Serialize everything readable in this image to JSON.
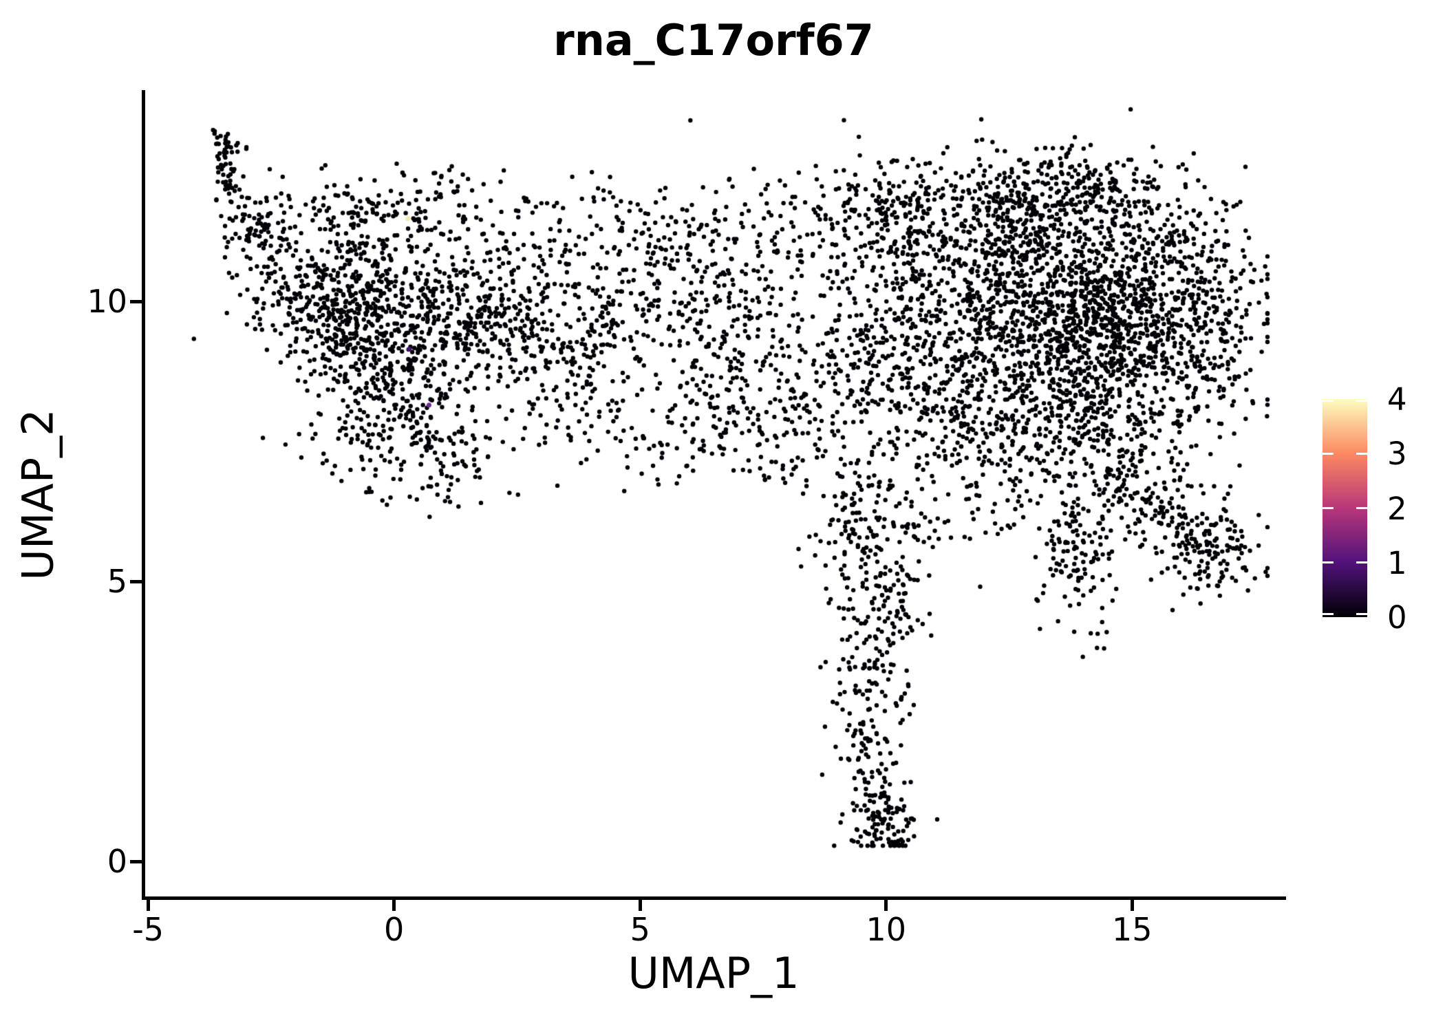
{
  "title": "rna_C17orf67",
  "x_axis": {
    "label": "UMAP_1",
    "ticks": [
      -5,
      0,
      5,
      10,
      15
    ],
    "range": [
      -5.1,
      18.1
    ]
  },
  "y_axis": {
    "label": "UMAP_2",
    "ticks": [
      0,
      5,
      10
    ],
    "range": [
      -0.65,
      13.75
    ]
  },
  "colorbar": {
    "ticks": [
      0,
      1,
      2,
      3,
      4
    ],
    "range": [
      0,
      4
    ],
    "gradient_stops": [
      "#000004",
      "#51127c",
      "#b73779",
      "#fc8961",
      "#fcfdbf"
    ],
    "tick_mark_color": "#ffffff"
  },
  "chart_data": {
    "type": "scatter",
    "title": "rna_C17orf67",
    "xlabel": "UMAP_1",
    "ylabel": "UMAP_2",
    "xlim": [
      -5.1,
      18.1
    ],
    "ylim": [
      -0.65,
      13.75
    ],
    "grid": false,
    "legend_position": "right-colorbar",
    "point_color": "#000006",
    "point_radius_px": 3.2,
    "seed": 7,
    "cluster_format": [
      "cx",
      "cy",
      "sx",
      "sy",
      "n"
    ],
    "clusters": [
      [
        -3.51,
        12.8,
        0.11,
        0.17,
        25
      ],
      [
        -3.32,
        12.18,
        0.17,
        0.31,
        40
      ],
      [
        -2.7,
        11.32,
        0.35,
        0.43,
        80
      ],
      [
        -1.3,
        10.22,
        0.77,
        0.67,
        350
      ],
      [
        -0.18,
        9.48,
        0.98,
        0.74,
        400
      ],
      [
        -0.6,
        11.69,
        0.84,
        0.31,
        90
      ],
      [
        1.08,
        11.69,
        0.84,
        0.37,
        60
      ],
      [
        1.35,
        9.85,
        0.84,
        0.61,
        220
      ],
      [
        -0.18,
        8.01,
        0.84,
        0.61,
        180
      ],
      [
        1.08,
        7.28,
        0.56,
        0.49,
        80
      ],
      [
        2.61,
        9.48,
        0.63,
        0.74,
        150
      ],
      [
        3.87,
        8.99,
        0.7,
        0.74,
        80
      ],
      [
        4.29,
        10.22,
        0.7,
        0.61,
        60
      ],
      [
        5.68,
        9.85,
        0.84,
        0.86,
        120
      ],
      [
        7.08,
        9.48,
        0.84,
        0.98,
        150
      ],
      [
        6.66,
        11.32,
        1.12,
        0.49,
        70
      ],
      [
        8.06,
        8.01,
        0.98,
        0.74,
        150
      ],
      [
        5.96,
        7.77,
        0.84,
        0.61,
        80
      ],
      [
        9.73,
        6.17,
        0.63,
        0.61,
        150
      ],
      [
        9.87,
        4.58,
        0.49,
        0.55,
        100
      ],
      [
        9.73,
        3.23,
        0.42,
        0.55,
        80
      ],
      [
        9.66,
        2.0,
        0.31,
        0.43,
        50
      ],
      [
        9.87,
        0.77,
        0.39,
        0.37,
        90
      ],
      [
        10.1,
        0.5,
        0.28,
        0.2,
        25
      ],
      [
        13.37,
        9.85,
        1.26,
        0.98,
        900
      ],
      [
        15.04,
        9.48,
        0.98,
        0.86,
        600
      ],
      [
        12.25,
        11.45,
        1.26,
        0.61,
        300
      ],
      [
        13.79,
        11.94,
        0.98,
        0.43,
        180
      ],
      [
        10.15,
        11.69,
        0.84,
        0.49,
        150
      ],
      [
        10.85,
        9.85,
        0.84,
        0.98,
        250
      ],
      [
        11.27,
        8.01,
        0.84,
        0.74,
        200
      ],
      [
        13.65,
        7.77,
        1.12,
        0.61,
        250
      ],
      [
        16.58,
        9.85,
        0.63,
        0.86,
        200
      ],
      [
        15.74,
        11.32,
        0.84,
        0.49,
        100
      ],
      [
        13.78,
        5.56,
        0.42,
        0.74,
        120
      ],
      [
        14.9,
        6.91,
        0.56,
        0.43,
        90
      ],
      [
        15.81,
        6.23,
        0.49,
        0.37,
        80
      ],
      [
        16.65,
        5.5,
        0.56,
        0.39,
        130
      ],
      [
        8.76,
        11.08,
        0.84,
        0.61,
        80
      ],
      [
        9.46,
        8.99,
        0.7,
        0.61,
        100
      ],
      [
        2.89,
        11.08,
        0.84,
        0.49,
        50
      ],
      [
        5.26,
        11.32,
        0.84,
        0.49,
        50
      ],
      [
        12.11,
        6.29,
        0.56,
        0.49,
        40
      ],
      [
        3.45,
        8.01,
        0.84,
        0.61,
        40
      ]
    ],
    "clamp": {
      "x": [
        -4.55,
        17.75
      ],
      "y": [
        0.28,
        13.5
      ]
    },
    "highlight_points": [
      {
        "x": 0.28,
        "y": 11.48,
        "value": 4.0,
        "color": "#f3eba9"
      },
      {
        "x": 0.71,
        "y": 8.15,
        "value": 1.4,
        "color": "#6b2d8e"
      },
      {
        "x": 0.31,
        "y": 9.15,
        "value": 0.8,
        "color": "#42136e"
      }
    ]
  }
}
